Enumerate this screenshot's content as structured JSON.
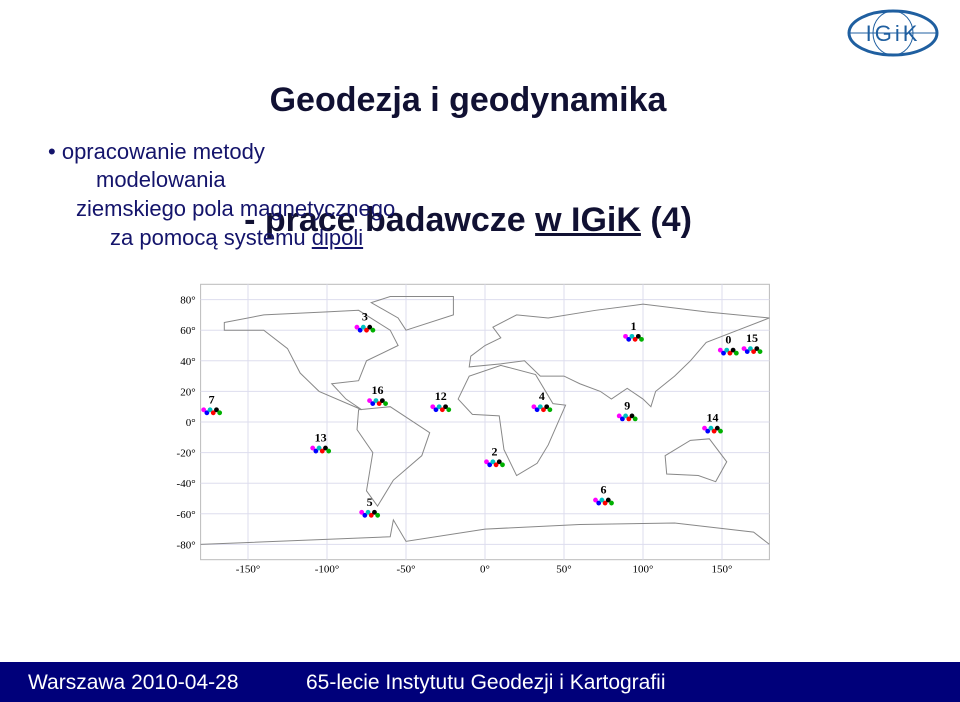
{
  "header": {
    "title_line1": "Geodezja i geodynamika",
    "title_line2_a": "- prace badawcze ",
    "title_line2_b": "w IGiK",
    "title_line2_c": " (4)",
    "logo": "IGiK"
  },
  "bullet": {
    "line1": "opracowanie metody",
    "line2": "modelowania",
    "line3": "ziemskiego pola magnetycznego",
    "line4_a": "za pomocą systemu ",
    "line4_b": "dipoli"
  },
  "chart_data": {
    "type": "map",
    "xlim": [
      -180,
      180
    ],
    "ylim": [
      -90,
      90
    ],
    "xticks": [
      {
        "value": -150,
        "label": "-150°"
      },
      {
        "value": -100,
        "label": "-100°"
      },
      {
        "value": -50,
        "label": "-50°"
      },
      {
        "value": 0,
        "label": "0°"
      },
      {
        "value": 50,
        "label": "50°"
      },
      {
        "value": 100,
        "label": "100°"
      },
      {
        "value": 150,
        "label": "150°"
      }
    ],
    "yticks": [
      {
        "value": 80,
        "label": "80°"
      },
      {
        "value": 60,
        "label": "60°"
      },
      {
        "value": 40,
        "label": "40°"
      },
      {
        "value": 20,
        "label": "20°"
      },
      {
        "value": 0,
        "label": "0°"
      },
      {
        "value": -20,
        "label": "-20°"
      },
      {
        "value": -40,
        "label": "-40°"
      },
      {
        "value": -60,
        "label": "-60°"
      },
      {
        "value": -80,
        "label": "-80°"
      }
    ],
    "grid": true,
    "dipoles": [
      {
        "label": "0",
        "lon": 154,
        "lat": 46
      },
      {
        "label": "1",
        "lon": 94,
        "lat": 55
      },
      {
        "label": "2",
        "lon": 6,
        "lat": -27
      },
      {
        "label": "3",
        "lon": -76,
        "lat": 61
      },
      {
        "label": "4",
        "lon": 36,
        "lat": 9
      },
      {
        "label": "5",
        "lon": -73,
        "lat": -60
      },
      {
        "label": "6",
        "lon": 75,
        "lat": -52
      },
      {
        "label": "7",
        "lon": -173,
        "lat": 7
      },
      {
        "label": "9",
        "lon": 90,
        "lat": 3
      },
      {
        "label": "12",
        "lon": -28,
        "lat": 9
      },
      {
        "label": "13",
        "lon": -104,
        "lat": -18
      },
      {
        "label": "14",
        "lon": 144,
        "lat": -5
      },
      {
        "label": "15",
        "lon": 169,
        "lat": 47
      },
      {
        "label": "16",
        "lon": -68,
        "lat": 13
      }
    ]
  },
  "footer": {
    "left": "Warszawa 2010-04-28",
    "right": "65-lecie Instytutu Geodezji i Kartografii"
  }
}
